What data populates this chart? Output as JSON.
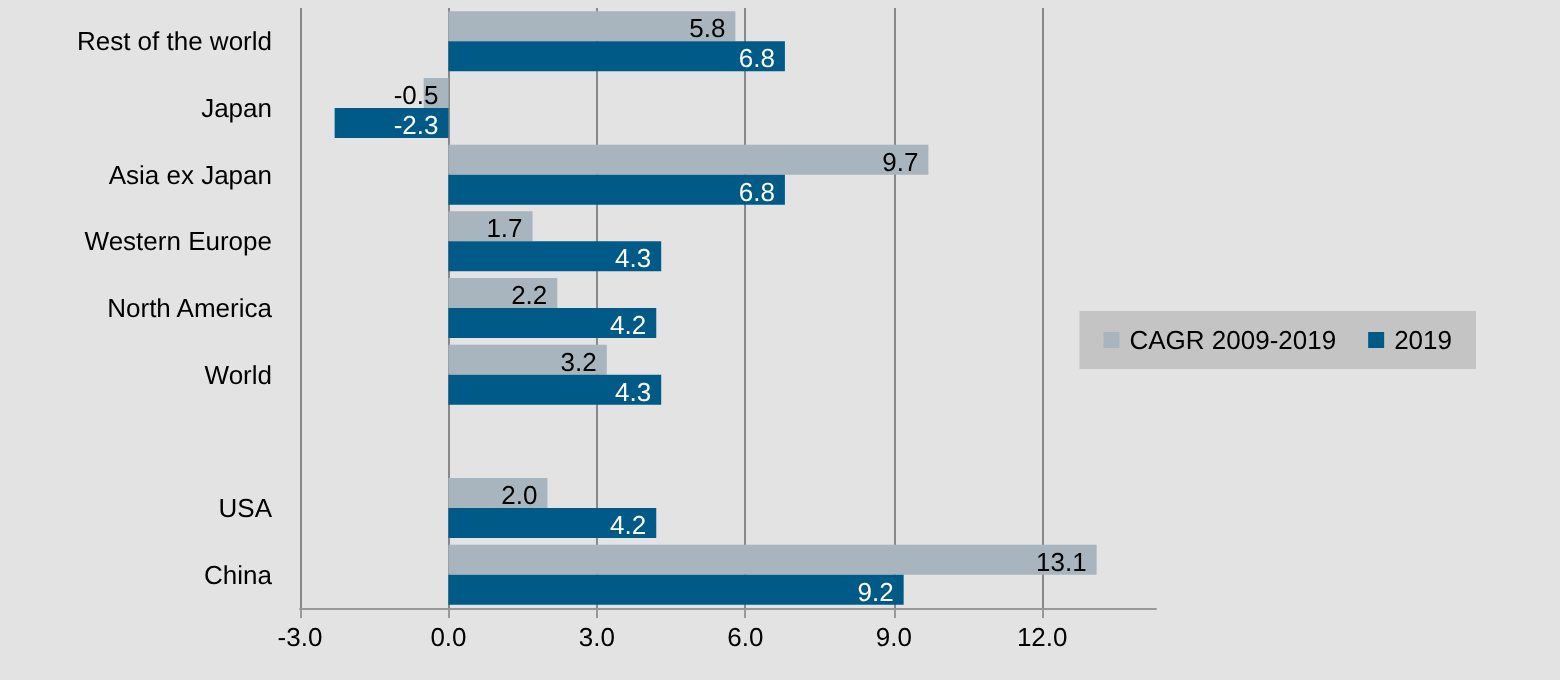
{
  "chart_data": {
    "type": "bar",
    "orientation": "horizontal",
    "categories": [
      "Rest of the world",
      "Japan",
      "Asia ex Japan",
      "Western Europe",
      "North America",
      "World",
      null,
      "USA",
      "China"
    ],
    "series": [
      {
        "name": "CAGR 2009-2019",
        "color": "#a9b5be",
        "values": [
          5.8,
          -0.5,
          9.7,
          1.7,
          2.2,
          3.2,
          null,
          2.0,
          13.1
        ],
        "value_labels": [
          "5.8",
          "-0.5",
          "9.7",
          "1.7",
          "2.2",
          "3.2",
          null,
          "2.0",
          "13.1"
        ]
      },
      {
        "name": "2019",
        "color": "#005a87",
        "values": [
          6.8,
          -2.3,
          6.8,
          4.3,
          4.2,
          4.3,
          null,
          4.2,
          9.2
        ],
        "value_labels": [
          "6.8",
          "-2.3",
          "6.8",
          "4.3",
          "4.2",
          "4.3",
          null,
          "4.2",
          "9.2"
        ]
      }
    ],
    "xlim": [
      -3,
      14.3
    ],
    "xticks": [
      {
        "value": -3,
        "label": "-3.0"
      },
      {
        "value": 0,
        "label": "0.0"
      },
      {
        "value": 3,
        "label": "3.0"
      },
      {
        "value": 6,
        "label": "6.0"
      },
      {
        "value": 9,
        "label": "9.0"
      },
      {
        "value": 12,
        "label": "12.0"
      }
    ],
    "grid": "x",
    "legend": "right"
  }
}
